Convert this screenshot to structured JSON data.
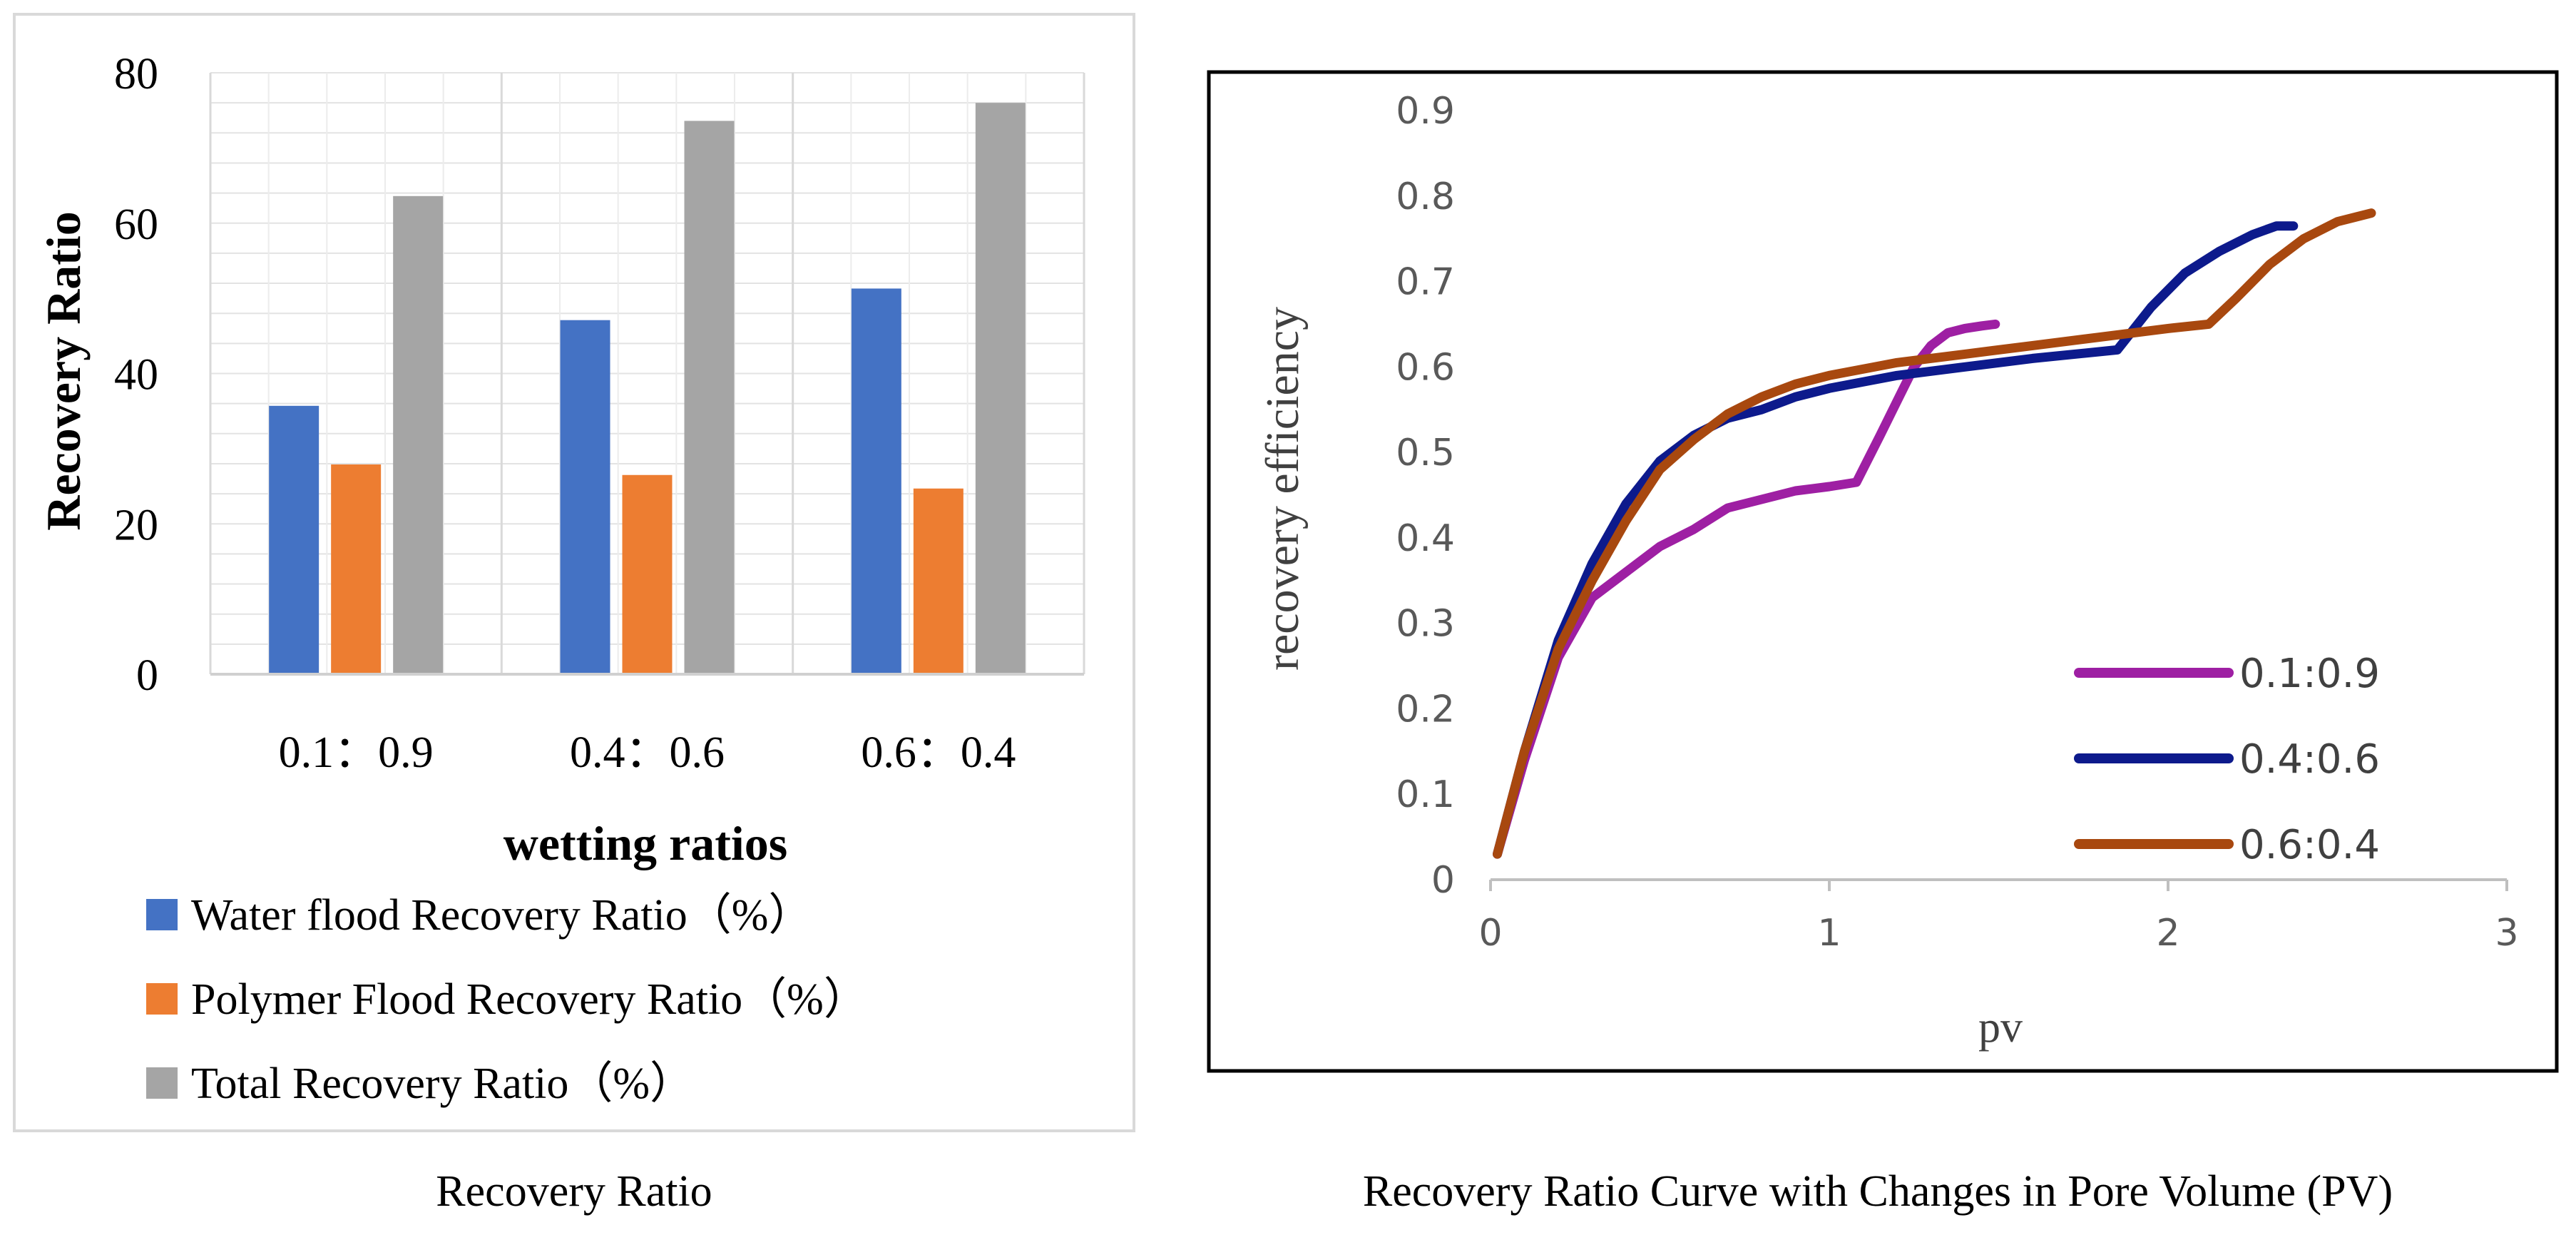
{
  "chart_data": [
    {
      "type": "bar",
      "title": "",
      "caption": "Recovery Ratio",
      "xlabel": "wetting ratios",
      "ylabel": "Recovery Ratio",
      "ylim": [
        0,
        80
      ],
      "yticks": [
        "0",
        "20",
        "40",
        "60",
        "80"
      ],
      "grid": true,
      "legend_position": "bottom",
      "categories": [
        "0.1：0.9",
        "0.4：0.6",
        "0.6：0.4"
      ],
      "series": [
        {
          "name": "Water flood Recovery Ratio（%）",
          "color": "#4472C4",
          "values": [
            35.7,
            47.1,
            51.3
          ]
        },
        {
          "name": "Polymer Flood Recovery Ratio（%）",
          "color": "#ED7D31",
          "values": [
            27.9,
            26.5,
            24.7
          ]
        },
        {
          "name": "Total Recovery Ratio（%）",
          "color": "#A5A5A5",
          "values": [
            63.6,
            73.6,
            76.0
          ]
        }
      ]
    },
    {
      "type": "line",
      "title": "",
      "caption": "Recovery Ratio Curve with Changes in Pore Volume (PV)",
      "xlabel": "pv",
      "ylabel": "recovery efficiency",
      "xlim": [
        0,
        3
      ],
      "ylim": [
        0,
        0.9
      ],
      "xticks": [
        "0",
        "1",
        "2",
        "3"
      ],
      "yticks": [
        "0",
        "0.1",
        "0.2",
        "0.3",
        "0.4",
        "0.5",
        "0.6",
        "0.7",
        "0.8",
        "0.9"
      ],
      "grid": false,
      "legend_position": "bottom-right",
      "series": [
        {
          "name": "0.1:0.9",
          "color": "#9E1FA3",
          "x": [
            0.02,
            0.1,
            0.2,
            0.3,
            0.4,
            0.5,
            0.6,
            0.7,
            0.8,
            0.9,
            1.0,
            1.08,
            1.15,
            1.2,
            1.25,
            1.3,
            1.35,
            1.4,
            1.45,
            1.49
          ],
          "y": [
            0.03,
            0.14,
            0.26,
            0.33,
            0.36,
            0.39,
            0.41,
            0.435,
            0.445,
            0.455,
            0.46,
            0.465,
            0.52,
            0.56,
            0.6,
            0.625,
            0.64,
            0.645,
            0.648,
            0.65
          ]
        },
        {
          "name": "0.4:0.6",
          "color": "#0D1A8C",
          "x": [
            0.02,
            0.1,
            0.2,
            0.3,
            0.4,
            0.5,
            0.6,
            0.7,
            0.8,
            0.9,
            1.0,
            1.2,
            1.4,
            1.6,
            1.85,
            1.95,
            2.05,
            2.15,
            2.25,
            2.32,
            2.37
          ],
          "y": [
            0.03,
            0.15,
            0.28,
            0.37,
            0.44,
            0.49,
            0.52,
            0.54,
            0.55,
            0.565,
            0.575,
            0.59,
            0.6,
            0.61,
            0.62,
            0.67,
            0.71,
            0.735,
            0.755,
            0.765,
            0.765
          ]
        },
        {
          "name": "0.6:0.4",
          "color": "#A8480F",
          "x": [
            0.02,
            0.1,
            0.2,
            0.3,
            0.4,
            0.5,
            0.6,
            0.7,
            0.8,
            0.9,
            1.0,
            1.2,
            1.4,
            1.6,
            1.8,
            2.0,
            2.12,
            2.2,
            2.3,
            2.4,
            2.5,
            2.6
          ],
          "y": [
            0.03,
            0.15,
            0.27,
            0.35,
            0.42,
            0.48,
            0.515,
            0.545,
            0.565,
            0.58,
            0.59,
            0.605,
            0.615,
            0.625,
            0.635,
            0.645,
            0.65,
            0.68,
            0.72,
            0.75,
            0.77,
            0.78
          ]
        }
      ]
    }
  ]
}
